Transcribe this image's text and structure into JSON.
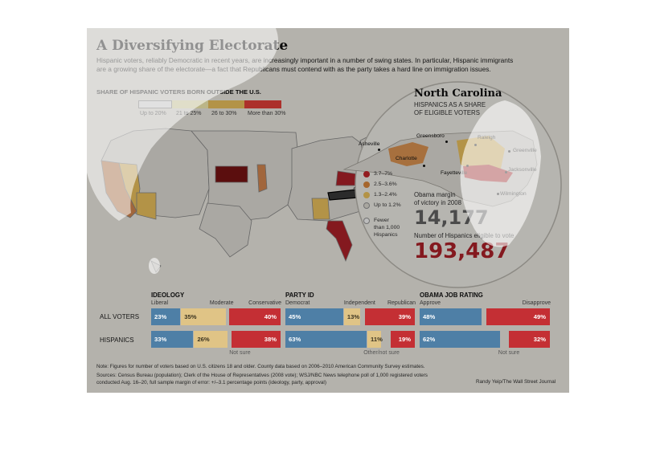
{
  "header": {
    "title": "A Diversifying Electorate",
    "intro_1": "Hispanic voters, reliably Democratic in recent years, are increasingly important in a number of swing states. In particular, Hispanic immigrants",
    "intro_2": "are a growing share of the electorate—a fact that Republicans must contend with as the party takes a hard line on immigration issues."
  },
  "map_legend": {
    "title": "SHARE OF HISPANIC VOTERS BORN OUTSIDE THE U.S.",
    "items": [
      {
        "label": "Up to 20%",
        "color": "#ffffff"
      },
      {
        "label": "21 to 25%",
        "color": "#fdf5b6"
      },
      {
        "label": "26 to 30%",
        "color": "#f2c761"
      },
      {
        "label": "More than 30%",
        "color": "#e8423a"
      }
    ]
  },
  "nc_panel": {
    "title": "North Carolina",
    "subtitle_1": "HISPANICS AS A SHARE",
    "subtitle_2": "OF ELIGIBLE VOTERS",
    "cities": [
      "Asheville",
      "Greensboro",
      "Raleigh",
      "Greenville",
      "Charlotte",
      "Fayetteville",
      "Jacksonville",
      "Wilmington"
    ],
    "legend": [
      {
        "label": "3.7–7%",
        "color": "#c7272b"
      },
      {
        "label": "2.5–3.6%",
        "color": "#e08a3c"
      },
      {
        "label": "1.3–2.4%",
        "color": "#f2c761"
      },
      {
        "label": "Up to 1.2%",
        "color": "#e5e2d8"
      },
      {
        "label": "Fewer",
        "color": "#ffffff"
      }
    ],
    "fewer_2": "than 1,000",
    "fewer_3": "Hispanics",
    "margin_label_1": "Obama margin",
    "margin_label_2": "of victory in 2008",
    "margin_value": "14,177",
    "eligible_label": "Number of Hispanics eligible to vote",
    "eligible_value": "193,487",
    "colors": {
      "gray_value": "#666666",
      "red_value": "#b3232a"
    }
  },
  "chart_data": [
    {
      "type": "bar",
      "title": "IDEOLOGY",
      "categories": [
        "ALL VOTERS",
        "HISPANICS"
      ],
      "series": [
        {
          "name": "Liberal",
          "values": [
            23,
            33
          ],
          "color": "#4e7fa6"
        },
        {
          "name": "Moderate",
          "values": [
            35,
            26
          ],
          "color": "#e0c486"
        },
        {
          "name": "Conservative",
          "values": [
            40,
            38
          ],
          "color": "#c42f34"
        }
      ],
      "not_sure": "Not sure"
    },
    {
      "type": "bar",
      "title": "PARTY ID",
      "categories": [
        "ALL VOTERS",
        "HISPANICS"
      ],
      "series": [
        {
          "name": "Democrat",
          "values": [
            45,
            63
          ],
          "color": "#4e7fa6"
        },
        {
          "name": "Independent",
          "values": [
            13,
            11
          ],
          "color": "#e0c486"
        },
        {
          "name": "Republican",
          "values": [
            39,
            19
          ],
          "color": "#c42f34"
        }
      ],
      "not_sure": "Other/not sure"
    },
    {
      "type": "bar",
      "title": "OBAMA JOB RATING",
      "categories": [
        "ALL VOTERS",
        "HISPANICS"
      ],
      "series": [
        {
          "name": "Approve",
          "values": [
            48,
            62
          ],
          "color": "#4e7fa6"
        },
        {
          "name": "Disapprove",
          "values": [
            49,
            32
          ],
          "color": "#c42f34"
        }
      ],
      "not_sure": "Not sure"
    }
  ],
  "notes": {
    "line_1": "Note: Figures for number of voters based on U.S. citizens 18 and older. County data based on 2006–2010 American Community Survey estimates.",
    "line_2": "Sources: Census Bureau (population); Clerk of the House of Representatives (2008 vote); WSJ/NBC News telephone poll of 1,000 registered voters",
    "line_3": "conducted Aug. 16–20, full sample margin of error: +/–3.1 percentage points (ideology, party, approval)",
    "credit": "Randy Yeip/The Wall Street Journal"
  }
}
